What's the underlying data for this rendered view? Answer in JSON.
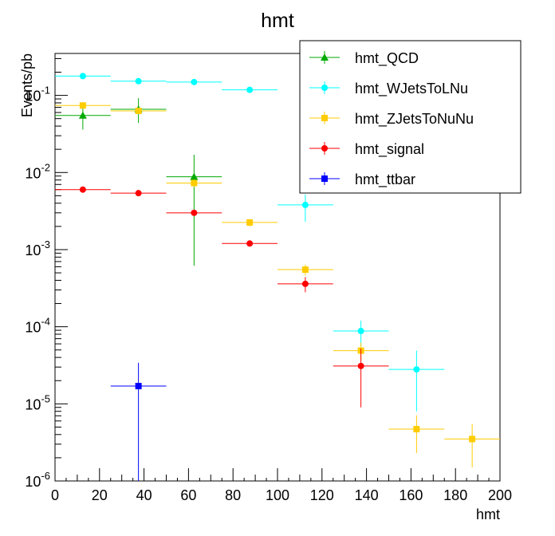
{
  "chart_data": {
    "type": "scatter",
    "title": "hmt",
    "xlabel": "hmt",
    "ylabel": "Events/pb",
    "xlim": [
      0,
      200
    ],
    "ylim": [
      1e-06,
      0.35
    ],
    "y_log_scale": true,
    "grid": false,
    "legend_position": "top-right",
    "x_tick_labels": [
      "0",
      "20",
      "40",
      "60",
      "80",
      "100",
      "120",
      "140",
      "160",
      "180",
      "200"
    ],
    "y_tick_labels": [
      {
        "base": "10",
        "exp": "-6"
      },
      {
        "base": "10",
        "exp": "-5"
      },
      {
        "base": "10",
        "exp": "-4"
      },
      {
        "base": "10",
        "exp": "-3"
      },
      {
        "base": "10",
        "exp": "-2"
      },
      {
        "base": "10",
        "exp": "-1"
      }
    ],
    "series": [
      {
        "name": "hmt_QCD",
        "color": "#00aa00",
        "marker": "triangle",
        "points": [
          {
            "x": 12.5,
            "y": 0.055,
            "ylo": 0.036,
            "yhi": 0.075
          },
          {
            "x": 37.5,
            "y": 0.066,
            "ylo": 0.044,
            "yhi": 0.092
          },
          {
            "x": 62.5,
            "y": 0.0088,
            "ylo": 0.00062,
            "yhi": 0.017
          }
        ]
      },
      {
        "name": "hmt_WJetsToLNu",
        "color": "#00ffff",
        "marker": "circle",
        "points": [
          {
            "x": 12.5,
            "y": 0.178,
            "ylo": 0.172,
            "yhi": 0.184
          },
          {
            "x": 37.5,
            "y": 0.153,
            "ylo": 0.148,
            "yhi": 0.158
          },
          {
            "x": 62.5,
            "y": 0.149,
            "ylo": 0.144,
            "yhi": 0.154
          },
          {
            "x": 87.5,
            "y": 0.118,
            "ylo": 0.113,
            "yhi": 0.123
          },
          {
            "x": 112.5,
            "y": 0.0038,
            "ylo": 0.0023,
            "yhi": 0.0052
          },
          {
            "x": 137.5,
            "y": 8.8e-05,
            "ylo": 5.5e-05,
            "yhi": 0.00012
          },
          {
            "x": 162.5,
            "y": 2.8e-05,
            "ylo": 8e-06,
            "yhi": 4.9e-05
          }
        ]
      },
      {
        "name": "hmt_ZJetsToNuNu",
        "color": "#ffcc00",
        "marker": "square",
        "points": [
          {
            "x": 12.5,
            "y": 0.074,
            "ylo": 0.071,
            "yhi": 0.077
          },
          {
            "x": 37.5,
            "y": 0.063,
            "ylo": 0.06,
            "yhi": 0.066
          },
          {
            "x": 62.5,
            "y": 0.0073,
            "ylo": 0.0065,
            "yhi": 0.0081
          },
          {
            "x": 87.5,
            "y": 0.00225,
            "ylo": 0.002,
            "yhi": 0.0025
          },
          {
            "x": 112.5,
            "y": 0.00055,
            "ylo": 0.00046,
            "yhi": 0.00064
          },
          {
            "x": 137.5,
            "y": 4.9e-05,
            "ylo": 3.6e-05,
            "yhi": 6.2e-05
          },
          {
            "x": 162.5,
            "y": 4.7e-06,
            "ylo": 2.3e-06,
            "yhi": 7.1e-06
          },
          {
            "x": 187.5,
            "y": 3.5e-06,
            "ylo": 1.5e-06,
            "yhi": 5.5e-06
          }
        ]
      },
      {
        "name": "hmt_signal",
        "color": "#ff0000",
        "marker": "circle",
        "points": [
          {
            "x": 12.5,
            "y": 0.006,
            "ylo": 0.0057,
            "yhi": 0.0063
          },
          {
            "x": 37.5,
            "y": 0.0054,
            "ylo": 0.0051,
            "yhi": 0.0057
          },
          {
            "x": 62.5,
            "y": 0.003,
            "ylo": 0.0028,
            "yhi": 0.0032
          },
          {
            "x": 87.5,
            "y": 0.0012,
            "ylo": 0.0011,
            "yhi": 0.0013
          },
          {
            "x": 112.5,
            "y": 0.00036,
            "ylo": 0.00028,
            "yhi": 0.00044
          },
          {
            "x": 137.5,
            "y": 3.1e-05,
            "ylo": 9e-06,
            "yhi": 5.2e-05
          }
        ]
      },
      {
        "name": "hmt_ttbar",
        "color": "#0000ff",
        "marker": "square",
        "points": [
          {
            "x": 37.5,
            "y": 1.7e-05,
            "ylo": 1e-06,
            "yhi": 3.4e-05
          }
        ]
      }
    ]
  }
}
